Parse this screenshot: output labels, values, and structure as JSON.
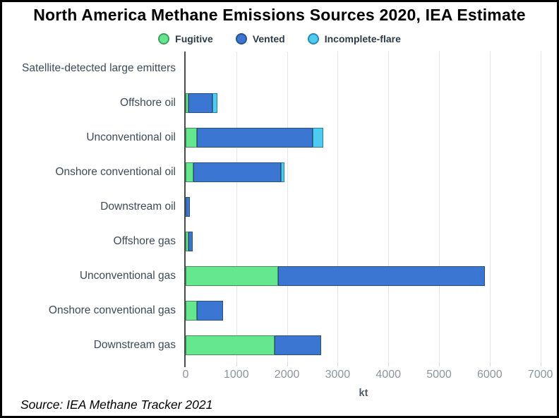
{
  "title": "North America Methane Emissions Sources 2020, IEA Estimate",
  "source": "Source: IEA Methane Tracker 2021",
  "chart_data": {
    "type": "bar",
    "orientation": "horizontal",
    "stacked": true,
    "title": "North America Methane Emissions Sources 2020, IEA Estimate",
    "xlabel": "kt",
    "ylabel": "",
    "xlim": [
      0,
      7100
    ],
    "xticks": [
      0,
      1000,
      2000,
      3000,
      4000,
      5000,
      6000,
      7000
    ],
    "grid": "vertical",
    "legend_position": "top-center",
    "categories": [
      "Satellite-detected large emitters",
      "Offshore oil",
      "Unconventional oil",
      "Onshore conventional oil",
      "Downstream oil",
      "Offshore gas",
      "Unconventional gas",
      "Onshore conventional gas",
      "Downstream gas"
    ],
    "series": [
      {
        "name": "Fugitive",
        "color": "#65E78E",
        "stroke": "#3F8F5D",
        "values": [
          0,
          30,
          220,
          160,
          0,
          30,
          1820,
          220,
          1750
        ]
      },
      {
        "name": "Vented",
        "color": "#3B76D3",
        "stroke": "#2A4E7E",
        "values": [
          0,
          470,
          2290,
          1720,
          80,
          90,
          4080,
          515,
          930
        ]
      },
      {
        "name": "Incomplete-flare",
        "color": "#4DCBF1",
        "stroke": "#2B7D9E",
        "values": [
          0,
          100,
          210,
          70,
          0,
          0,
          0,
          0,
          0
        ]
      }
    ],
    "unit": "kt"
  }
}
